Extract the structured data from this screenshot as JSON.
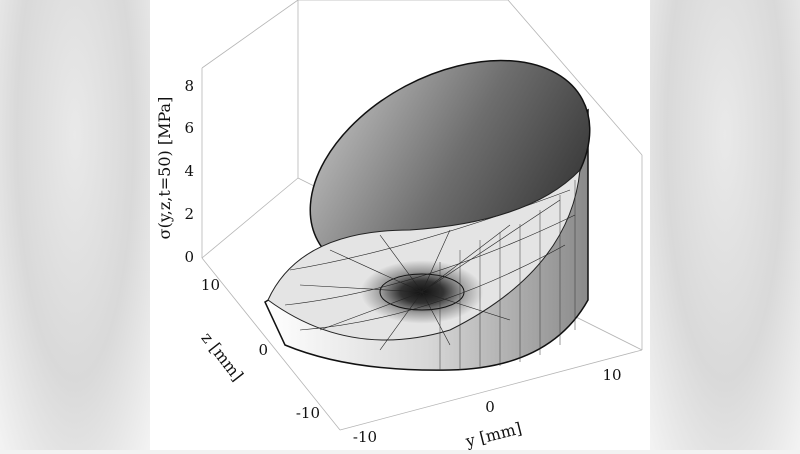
{
  "chart_data": {
    "type": "surface3d",
    "title": "",
    "xlabel": "y [mm]",
    "ylabel": "z [mm]",
    "zlabel": "σ(y,z,t=50) [MPa]",
    "x_ticks": [
      -10,
      0,
      10
    ],
    "y_ticks": [
      -10,
      0,
      10
    ],
    "z_ticks": [
      0,
      2,
      4,
      6,
      8
    ],
    "zlim": [
      0,
      8.5
    ],
    "description_values": {
      "rim_height_max": 8.3,
      "center_min": 0
    }
  }
}
